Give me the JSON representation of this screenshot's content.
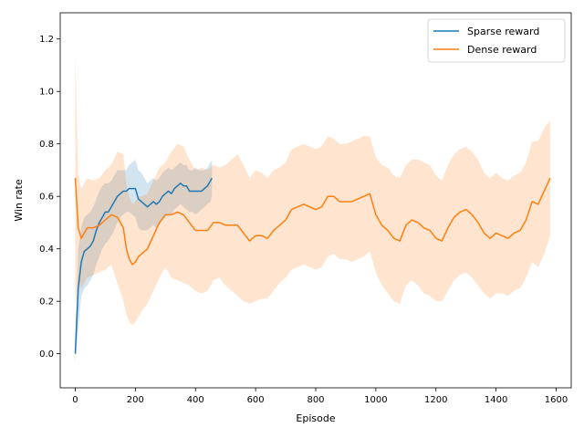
{
  "chart_data": {
    "type": "line",
    "title": "",
    "xlabel": "Episode",
    "ylabel": "Win rate",
    "xlim": [
      -50,
      1650
    ],
    "ylim": [
      -0.13,
      1.3
    ],
    "xticks": [
      0,
      200,
      400,
      600,
      800,
      1000,
      1200,
      1400,
      1600
    ],
    "yticks": [
      0.0,
      0.2,
      0.4,
      0.6,
      0.8,
      1.0,
      1.2
    ],
    "xtick_labels": [
      "0",
      "200",
      "400",
      "600",
      "800",
      "1000",
      "1200",
      "1400",
      "1600"
    ],
    "ytick_labels": [
      "0.0",
      "0.2",
      "0.4",
      "0.6",
      "0.8",
      "1.0",
      "1.2"
    ],
    "grid": false,
    "legend_position": "top-right",
    "series": [
      {
        "name": "Sparse reward",
        "color": "#1f77b4",
        "x": [
          0,
          10,
          20,
          30,
          40,
          50,
          60,
          70,
          80,
          90,
          100,
          110,
          120,
          130,
          140,
          150,
          160,
          170,
          180,
          190,
          200,
          210,
          220,
          230,
          240,
          250,
          260,
          270,
          280,
          290,
          300,
          310,
          320,
          330,
          340,
          350,
          360,
          370,
          380,
          390,
          400,
          410,
          420,
          430,
          440,
          450,
          455
        ],
        "y": [
          0.0,
          0.25,
          0.35,
          0.39,
          0.4,
          0.41,
          0.43,
          0.47,
          0.5,
          0.52,
          0.54,
          0.54,
          0.56,
          0.58,
          0.6,
          0.61,
          0.62,
          0.62,
          0.63,
          0.63,
          0.63,
          0.59,
          0.58,
          0.57,
          0.56,
          0.57,
          0.58,
          0.57,
          0.58,
          0.6,
          0.61,
          0.62,
          0.61,
          0.63,
          0.64,
          0.65,
          0.64,
          0.64,
          0.62,
          0.62,
          0.62,
          0.62,
          0.62,
          0.63,
          0.64,
          0.66,
          0.67
        ],
        "band_lower": [
          -0.04,
          0.1,
          0.22,
          0.25,
          0.26,
          0.28,
          0.3,
          0.34,
          0.37,
          0.4,
          0.42,
          0.43,
          0.45,
          0.47,
          0.5,
          0.52,
          0.53,
          0.54,
          0.54,
          0.53,
          0.52,
          0.48,
          0.47,
          0.47,
          0.47,
          0.48,
          0.49,
          0.48,
          0.49,
          0.51,
          0.52,
          0.53,
          0.53,
          0.55,
          0.56,
          0.57,
          0.56,
          0.55,
          0.54,
          0.54,
          0.53,
          0.54,
          0.55,
          0.56,
          0.57,
          0.58,
          0.6
        ],
        "band_upper": [
          0.07,
          0.4,
          0.48,
          0.52,
          0.53,
          0.54,
          0.56,
          0.59,
          0.62,
          0.64,
          0.65,
          0.65,
          0.66,
          0.68,
          0.7,
          0.7,
          0.7,
          0.7,
          0.72,
          0.73,
          0.74,
          0.7,
          0.69,
          0.67,
          0.65,
          0.66,
          0.67,
          0.66,
          0.67,
          0.69,
          0.7,
          0.71,
          0.7,
          0.71,
          0.72,
          0.73,
          0.72,
          0.72,
          0.7,
          0.7,
          0.71,
          0.7,
          0.7,
          0.7,
          0.71,
          0.73,
          0.74
        ]
      },
      {
        "name": "Dense reward",
        "color": "#ff7f0e",
        "x": [
          0,
          10,
          20,
          30,
          40,
          60,
          80,
          100,
          120,
          140,
          160,
          170,
          180,
          190,
          200,
          210,
          220,
          240,
          260,
          280,
          300,
          320,
          340,
          360,
          380,
          400,
          420,
          440,
          460,
          480,
          500,
          520,
          540,
          560,
          580,
          600,
          620,
          640,
          660,
          680,
          700,
          720,
          740,
          760,
          780,
          800,
          820,
          840,
          860,
          880,
          900,
          920,
          940,
          960,
          980,
          1000,
          1020,
          1040,
          1060,
          1080,
          1100,
          1120,
          1140,
          1160,
          1180,
          1200,
          1220,
          1240,
          1260,
          1280,
          1300,
          1320,
          1340,
          1360,
          1380,
          1400,
          1420,
          1440,
          1460,
          1480,
          1500,
          1520,
          1540,
          1560,
          1580
        ],
        "y": [
          0.67,
          0.48,
          0.44,
          0.46,
          0.48,
          0.48,
          0.49,
          0.51,
          0.53,
          0.52,
          0.48,
          0.4,
          0.36,
          0.34,
          0.35,
          0.37,
          0.38,
          0.4,
          0.45,
          0.5,
          0.53,
          0.53,
          0.54,
          0.53,
          0.5,
          0.47,
          0.47,
          0.47,
          0.5,
          0.5,
          0.49,
          0.49,
          0.49,
          0.46,
          0.43,
          0.45,
          0.45,
          0.44,
          0.47,
          0.49,
          0.51,
          0.55,
          0.56,
          0.57,
          0.56,
          0.55,
          0.56,
          0.6,
          0.6,
          0.58,
          0.58,
          0.58,
          0.59,
          0.6,
          0.61,
          0.53,
          0.49,
          0.47,
          0.44,
          0.43,
          0.49,
          0.51,
          0.5,
          0.48,
          0.47,
          0.44,
          0.43,
          0.48,
          0.52,
          0.54,
          0.55,
          0.53,
          0.5,
          0.46,
          0.44,
          0.46,
          0.45,
          0.44,
          0.46,
          0.47,
          0.51,
          0.58,
          0.57,
          0.62,
          0.67
        ],
        "band_lower": [
          0.18,
          0.28,
          0.25,
          0.27,
          0.29,
          0.3,
          0.31,
          0.32,
          0.34,
          0.27,
          0.2,
          0.15,
          0.12,
          0.11,
          0.12,
          0.14,
          0.16,
          0.19,
          0.24,
          0.29,
          0.33,
          0.29,
          0.28,
          0.27,
          0.26,
          0.24,
          0.23,
          0.24,
          0.28,
          0.29,
          0.26,
          0.24,
          0.22,
          0.2,
          0.19,
          0.2,
          0.21,
          0.21,
          0.24,
          0.27,
          0.29,
          0.32,
          0.33,
          0.34,
          0.33,
          0.32,
          0.33,
          0.37,
          0.38,
          0.36,
          0.36,
          0.35,
          0.36,
          0.37,
          0.39,
          0.31,
          0.26,
          0.23,
          0.2,
          0.19,
          0.26,
          0.28,
          0.26,
          0.23,
          0.22,
          0.2,
          0.2,
          0.24,
          0.28,
          0.3,
          0.31,
          0.29,
          0.26,
          0.23,
          0.21,
          0.23,
          0.23,
          0.22,
          0.24,
          0.25,
          0.29,
          0.35,
          0.33,
          0.38,
          0.45
        ],
        "band_upper": [
          1.15,
          0.68,
          0.63,
          0.65,
          0.67,
          0.66,
          0.67,
          0.7,
          0.72,
          0.77,
          0.76,
          0.65,
          0.6,
          0.57,
          0.58,
          0.6,
          0.6,
          0.61,
          0.66,
          0.71,
          0.73,
          0.77,
          0.8,
          0.79,
          0.74,
          0.7,
          0.71,
          0.7,
          0.72,
          0.71,
          0.72,
          0.74,
          0.76,
          0.72,
          0.67,
          0.7,
          0.69,
          0.67,
          0.7,
          0.71,
          0.73,
          0.78,
          0.79,
          0.8,
          0.79,
          0.78,
          0.79,
          0.83,
          0.82,
          0.8,
          0.8,
          0.81,
          0.82,
          0.83,
          0.83,
          0.75,
          0.72,
          0.71,
          0.68,
          0.67,
          0.72,
          0.74,
          0.74,
          0.73,
          0.72,
          0.68,
          0.66,
          0.72,
          0.76,
          0.78,
          0.79,
          0.77,
          0.74,
          0.69,
          0.67,
          0.69,
          0.67,
          0.66,
          0.68,
          0.69,
          0.73,
          0.81,
          0.81,
          0.86,
          0.89
        ]
      }
    ]
  }
}
